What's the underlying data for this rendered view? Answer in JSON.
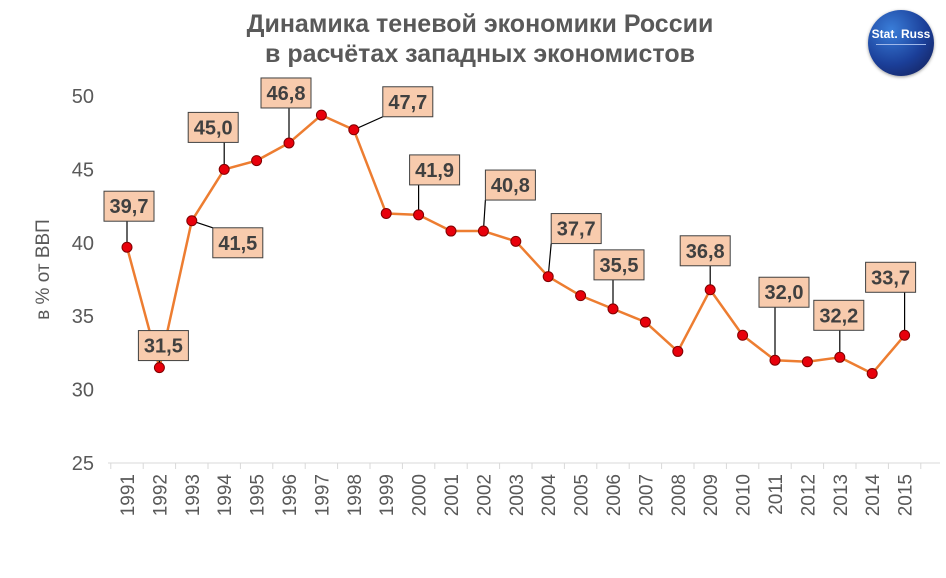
{
  "title_lines": [
    "Динамика теневой экономики России",
    "в расчётах западных экономистов"
  ],
  "logo": {
    "text": "Stat. Russ"
  },
  "chart_data": {
    "type": "line",
    "title": "Динамика теневой экономики России в расчётах западных экономистов",
    "ylabel": "в % от ВВП",
    "xlabel": "",
    "ylim": [
      25,
      50
    ],
    "yticks": [
      25,
      30,
      35,
      40,
      45,
      50
    ],
    "grid": false,
    "line_color": "#ed7d31",
    "marker_color": "#e8000b",
    "label_fill": "#f8cbad",
    "categories": [
      "1991",
      "1992",
      "1993",
      "1994",
      "1995",
      "1996",
      "1997",
      "1998",
      "1999",
      "2000",
      "2001",
      "2002",
      "2003",
      "2004",
      "2005",
      "2006",
      "2007",
      "2008",
      "2009",
      "2010",
      "2011",
      "2012",
      "2013",
      "2014",
      "2015"
    ],
    "values": [
      39.7,
      31.5,
      41.5,
      45.0,
      45.6,
      46.8,
      48.7,
      47.7,
      42.0,
      41.9,
      40.8,
      40.8,
      40.1,
      37.7,
      36.4,
      35.5,
      34.6,
      32.6,
      36.8,
      33.7,
      32.0,
      31.9,
      32.2,
      31.1,
      33.7
    ],
    "data_labels": [
      {
        "year": "1991",
        "text": "39,7"
      },
      {
        "year": "1992",
        "text": "31,5"
      },
      {
        "year": "1993",
        "text": "41,5"
      },
      {
        "year": "1994",
        "text": "45,0"
      },
      {
        "year": "1996",
        "text": "46,8"
      },
      {
        "year": "1998",
        "text": "47,7"
      },
      {
        "year": "2000",
        "text": "41,9"
      },
      {
        "year": "2002",
        "text": "40,8"
      },
      {
        "year": "2004",
        "text": "37,7"
      },
      {
        "year": "2006",
        "text": "35,5"
      },
      {
        "year": "2009",
        "text": "36,8"
      },
      {
        "year": "2011",
        "text": "32,0"
      },
      {
        "year": "2013",
        "text": "32,2"
      },
      {
        "year": "2015",
        "text": "33,7"
      }
    ]
  }
}
